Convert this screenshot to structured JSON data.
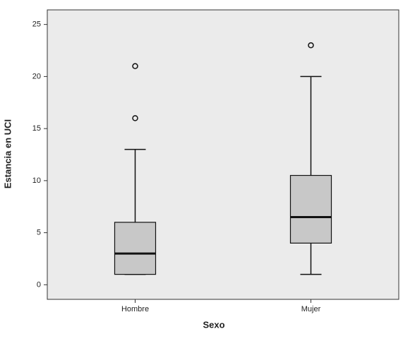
{
  "chart_data": {
    "type": "box",
    "x_label": "Sexo",
    "y_label": "Estancia en UCI",
    "categories": [
      "Hombre",
      "Mujer"
    ],
    "boxes": [
      {
        "min": 1,
        "q1": 1,
        "median": 3,
        "q3": 6,
        "max": 13,
        "outliers": [
          16,
          21
        ]
      },
      {
        "min": 1,
        "q1": 4,
        "median": 6.5,
        "q3": 10.5,
        "max": 20,
        "outliers": [
          23
        ]
      }
    ],
    "color": "#c8c8c8",
    "background": "#ebebeb",
    "ylim": [
      -1.4,
      26.4
    ],
    "yticks": [
      0,
      5,
      10,
      15,
      20,
      25
    ]
  }
}
